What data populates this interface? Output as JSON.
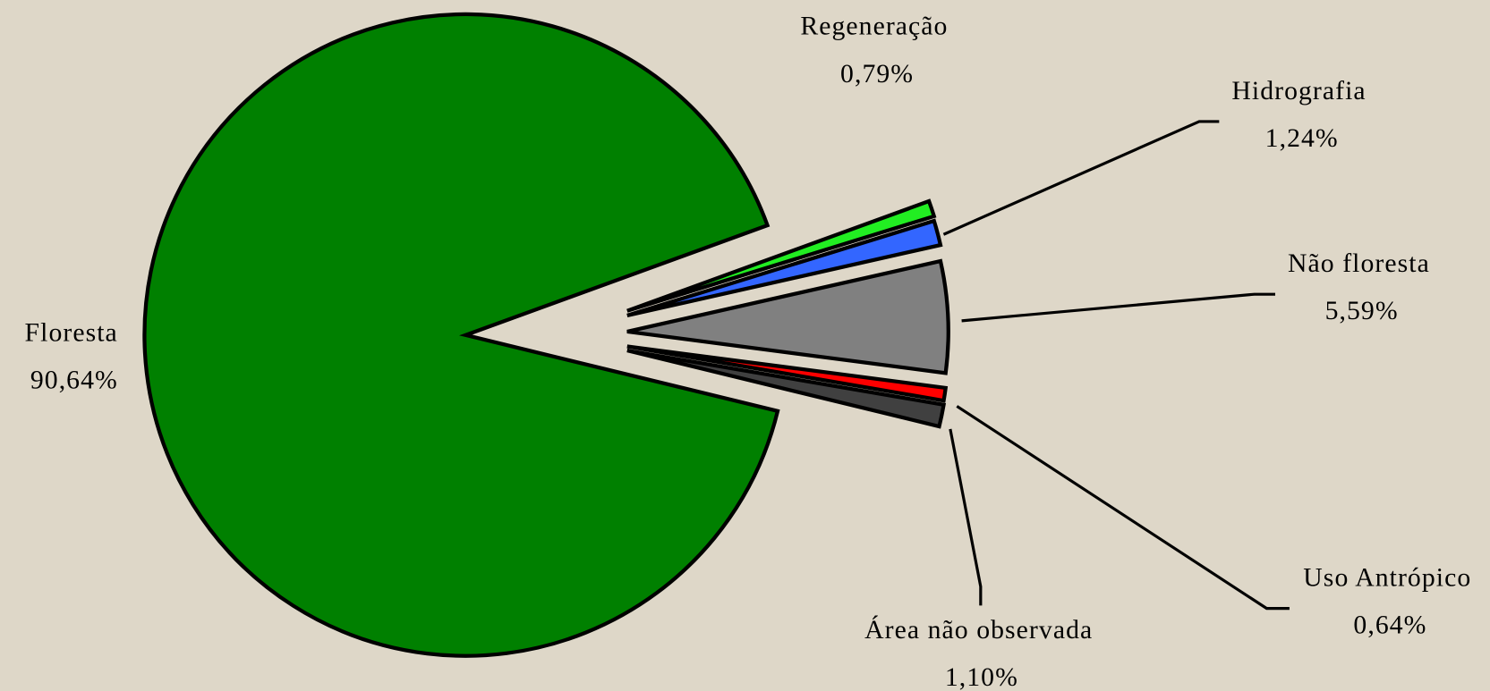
{
  "chart_data": {
    "type": "pie",
    "categories": [
      "Floresta",
      "Regeneração",
      "Hidrografia",
      "Não floresta",
      "Uso Antrópico",
      "Área não observada"
    ],
    "values": [
      90.64,
      0.79,
      1.24,
      5.59,
      0.64,
      1.1
    ],
    "value_labels": [
      "90,64%",
      "0,79%",
      "1,24%",
      "5,59%",
      "0,64%",
      "1,10%"
    ],
    "colors": [
      "#008000",
      "#22ee22",
      "#3366ff",
      "#808080",
      "#ff0000",
      "#404040"
    ]
  }
}
